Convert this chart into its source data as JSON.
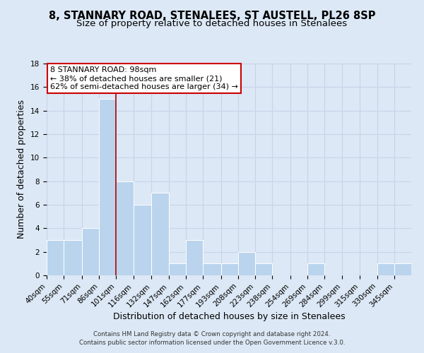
{
  "title": "8, STANNARY ROAD, STENALEES, ST AUSTELL, PL26 8SP",
  "subtitle": "Size of property relative to detached houses in Stenalees",
  "xlabel": "Distribution of detached houses by size in Stenalees",
  "ylabel": "Number of detached properties",
  "footnote1": "Contains HM Land Registry data © Crown copyright and database right 2024.",
  "footnote2": "Contains public sector information licensed under the Open Government Licence v.3.0.",
  "bin_edges": [
    40,
    55,
    71,
    86,
    101,
    116,
    132,
    147,
    162,
    177,
    193,
    208,
    223,
    238,
    254,
    269,
    284,
    299,
    315,
    330,
    345,
    360
  ],
  "bin_labels": [
    "40sqm",
    "55sqm",
    "71sqm",
    "86sqm",
    "101sqm",
    "116sqm",
    "132sqm",
    "147sqm",
    "162sqm",
    "177sqm",
    "193sqm",
    "208sqm",
    "223sqm",
    "238sqm",
    "254sqm",
    "269sqm",
    "284sqm",
    "299sqm",
    "315sqm",
    "330sqm",
    "345sqm"
  ],
  "counts": [
    3,
    3,
    4,
    15,
    8,
    6,
    7,
    1,
    3,
    1,
    1,
    2,
    1,
    0,
    0,
    1,
    0,
    0,
    0,
    1,
    1
  ],
  "bar_color": "#bad4ed",
  "bar_edgecolor": "#ffffff",
  "vline_x": 101,
  "vline_color": "#aa0000",
  "annotation_text": "8 STANNARY ROAD: 98sqm\n← 38% of detached houses are smaller (21)\n62% of semi-detached houses are larger (34) →",
  "annotation_box_color": "#ffffff",
  "annotation_box_edgecolor": "#cc0000",
  "ylim": [
    0,
    18
  ],
  "yticks": [
    0,
    2,
    4,
    6,
    8,
    10,
    12,
    14,
    16,
    18
  ],
  "grid_color": "#c8d4e8",
  "bg_color": "#dce8f5",
  "title_fontsize": 10.5,
  "subtitle_fontsize": 9.5,
  "axis_label_fontsize": 9,
  "tick_fontsize": 7.5,
  "footnote_fontsize": 6.2
}
